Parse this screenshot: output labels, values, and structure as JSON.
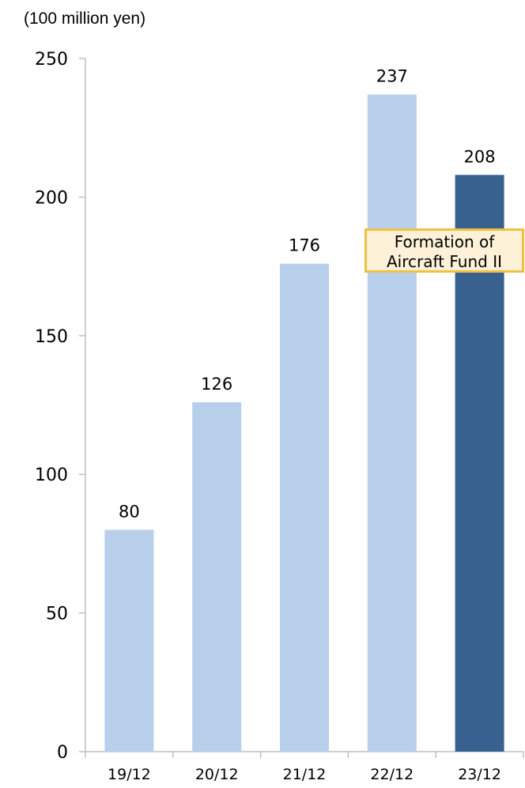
{
  "chart_data": {
    "type": "bar",
    "unit_label": "(100 million yen)",
    "categories": [
      "19/12",
      "20/12",
      "21/12",
      "22/12",
      "23/12"
    ],
    "values": [
      80,
      126,
      176,
      237,
      208
    ],
    "data_labels": [
      "80",
      "126",
      "176",
      "237",
      "208"
    ],
    "yticks": [
      "0",
      "50",
      "100",
      "150",
      "200",
      "250"
    ],
    "ylim": [
      0,
      250
    ],
    "grid": false,
    "colors": {
      "bar": "#b8cfeb",
      "highlight_bar": "#386190",
      "axis": "#bfbfbf",
      "annotation_border": "#f0c040",
      "annotation_fill": "#fdf2d8"
    },
    "highlight_index": 4,
    "annotation": {
      "line1": "Formation of",
      "line2": "Aircraft Fund II"
    }
  }
}
